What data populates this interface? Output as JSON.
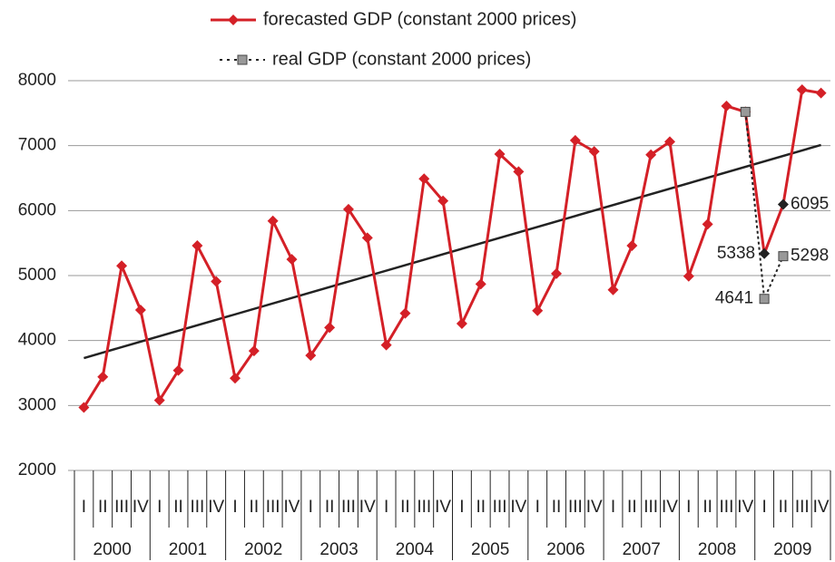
{
  "chart_data": {
    "type": "line",
    "categories": [
      "I",
      "II",
      "III",
      "IV",
      "I",
      "II",
      "III",
      "IV",
      "I",
      "II",
      "III",
      "IV",
      "I",
      "II",
      "III",
      "IV",
      "I",
      "II",
      "III",
      "IV",
      "I",
      "II",
      "III",
      "IV",
      "I",
      "II",
      "III",
      "IV",
      "I",
      "II",
      "III",
      "IV",
      "I",
      "II",
      "III",
      "IV",
      "I",
      "II",
      "III",
      "IV"
    ],
    "groups": [
      "2000",
      "2001",
      "2002",
      "2003",
      "2004",
      "2005",
      "2006",
      "2007",
      "2008",
      "2009"
    ],
    "series": [
      {
        "name": "forecasted GDP (constant 2000 prices)",
        "color": "#d42027",
        "marker": "diamond",
        "values": [
          2970,
          3440,
          5150,
          4470,
          3080,
          3540,
          5460,
          4910,
          3420,
          3840,
          5840,
          5250,
          3770,
          4200,
          6020,
          5580,
          3930,
          4420,
          6490,
          6150,
          4260,
          4870,
          6870,
          6600,
          4460,
          5030,
          7080,
          6910,
          4780,
          5460,
          6860,
          7060,
          4990,
          5790,
          7610,
          7520,
          5338,
          6095,
          7860,
          7810
        ],
        "value_labels": [
          null,
          null,
          null,
          null,
          null,
          null,
          null,
          null,
          null,
          null,
          null,
          null,
          null,
          null,
          null,
          null,
          null,
          null,
          null,
          null,
          null,
          null,
          null,
          null,
          null,
          null,
          null,
          null,
          null,
          null,
          null,
          null,
          null,
          null,
          null,
          null,
          "5338",
          "6095",
          null,
          null
        ]
      },
      {
        "name": "real GDP (constant 2000 prices)",
        "color": "#999999",
        "line_color": "#222222",
        "marker": "square",
        "dashed": true,
        "values": [
          null,
          null,
          null,
          null,
          null,
          null,
          null,
          null,
          null,
          null,
          null,
          null,
          null,
          null,
          null,
          null,
          null,
          null,
          null,
          null,
          null,
          null,
          null,
          null,
          null,
          null,
          null,
          null,
          null,
          null,
          null,
          null,
          null,
          null,
          null,
          7520,
          4641,
          5298,
          null,
          null
        ],
        "value_labels": [
          null,
          null,
          null,
          null,
          null,
          null,
          null,
          null,
          null,
          null,
          null,
          null,
          null,
          null,
          null,
          null,
          null,
          null,
          null,
          null,
          null,
          null,
          null,
          null,
          null,
          null,
          null,
          null,
          null,
          null,
          null,
          null,
          null,
          null,
          null,
          null,
          "4641",
          "5298",
          null,
          null
        ]
      }
    ],
    "label_marker_color": "#222222",
    "trendline": {
      "color": "#222222",
      "values": [
        3730,
        7010
      ]
    },
    "ylim": [
      2000,
      8000
    ],
    "yticks": [
      2000,
      3000,
      4000,
      5000,
      6000,
      7000,
      8000
    ],
    "grid": true,
    "legend": "top"
  }
}
